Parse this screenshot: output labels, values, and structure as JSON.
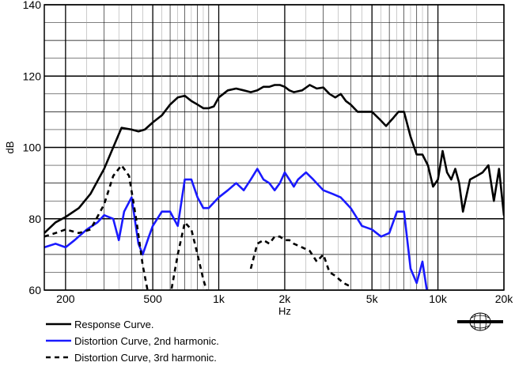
{
  "chart_data": {
    "type": "line",
    "xlabel": "Hz",
    "ylabel": "dB",
    "xscale": "log",
    "xlim": [
      160,
      20000
    ],
    "ylim": [
      60,
      140
    ],
    "grid": true,
    "legend_position": "bottom-left",
    "x_tick_values": [
      200,
      500,
      1000,
      2000,
      5000,
      10000,
      20000
    ],
    "x_tick_labels": [
      "200",
      "500",
      "1k",
      "2k",
      "5k",
      "10k",
      "20k"
    ],
    "y_tick_values": [
      60,
      80,
      100,
      120,
      140
    ],
    "y_tick_labels": [
      "60",
      "80",
      "100",
      "120",
      "140"
    ],
    "series": [
      {
        "name": "Response Curve.",
        "color": "#000000",
        "style": "solid",
        "points": [
          [
            160,
            76
          ],
          [
            180,
            79
          ],
          [
            200,
            80.5
          ],
          [
            230,
            83
          ],
          [
            260,
            87
          ],
          [
            300,
            94
          ],
          [
            330,
            100
          ],
          [
            360,
            105.5
          ],
          [
            400,
            105
          ],
          [
            430,
            104.5
          ],
          [
            460,
            105
          ],
          [
            500,
            107
          ],
          [
            550,
            109
          ],
          [
            600,
            112
          ],
          [
            650,
            114
          ],
          [
            700,
            114.5
          ],
          [
            750,
            113
          ],
          [
            800,
            112
          ],
          [
            850,
            111
          ],
          [
            900,
            111
          ],
          [
            950,
            111.5
          ],
          [
            1000,
            114
          ],
          [
            1100,
            116
          ],
          [
            1200,
            116.5
          ],
          [
            1300,
            116
          ],
          [
            1400,
            115.5
          ],
          [
            1500,
            116
          ],
          [
            1600,
            117
          ],
          [
            1700,
            117
          ],
          [
            1800,
            117.5
          ],
          [
            1900,
            117.5
          ],
          [
            2000,
            117
          ],
          [
            2100,
            116
          ],
          [
            2200,
            115.5
          ],
          [
            2400,
            116
          ],
          [
            2600,
            117.5
          ],
          [
            2800,
            116.5
          ],
          [
            3000,
            116.8
          ],
          [
            3200,
            115
          ],
          [
            3400,
            114
          ],
          [
            3600,
            115
          ],
          [
            3800,
            113
          ],
          [
            4000,
            112
          ],
          [
            4300,
            110
          ],
          [
            4600,
            110
          ],
          [
            5000,
            110
          ],
          [
            5400,
            108
          ],
          [
            5800,
            106
          ],
          [
            6200,
            108
          ],
          [
            6600,
            110
          ],
          [
            7000,
            110
          ],
          [
            7500,
            103
          ],
          [
            8000,
            98
          ],
          [
            8500,
            98
          ],
          [
            9000,
            95
          ],
          [
            9500,
            89
          ],
          [
            10000,
            91
          ],
          [
            10500,
            99
          ],
          [
            11000,
            93
          ],
          [
            11500,
            91
          ],
          [
            12000,
            94
          ],
          [
            12500,
            90
          ],
          [
            13000,
            82
          ],
          [
            14000,
            91
          ],
          [
            15000,
            92
          ],
          [
            16000,
            93
          ],
          [
            17000,
            95
          ],
          [
            18000,
            85
          ],
          [
            19000,
            94
          ],
          [
            20000,
            81
          ],
          [
            21000,
            94
          ]
        ]
      },
      {
        "name": "Distortion Curve, 2nd harmonic.",
        "color": "#1a1aff",
        "style": "solid",
        "points": [
          [
            160,
            72
          ],
          [
            180,
            73
          ],
          [
            200,
            72
          ],
          [
            220,
            74
          ],
          [
            250,
            77
          ],
          [
            280,
            79
          ],
          [
            300,
            81
          ],
          [
            330,
            80
          ],
          [
            350,
            74
          ],
          [
            370,
            82
          ],
          [
            400,
            86
          ],
          [
            430,
            73
          ],
          [
            450,
            70
          ],
          [
            480,
            75
          ],
          [
            500,
            78
          ],
          [
            550,
            82
          ],
          [
            600,
            82
          ],
          [
            650,
            78
          ],
          [
            700,
            91
          ],
          [
            750,
            91
          ],
          [
            800,
            86
          ],
          [
            850,
            83
          ],
          [
            900,
            83
          ],
          [
            1000,
            86
          ],
          [
            1100,
            88
          ],
          [
            1200,
            90
          ],
          [
            1300,
            88
          ],
          [
            1400,
            91
          ],
          [
            1500,
            94
          ],
          [
            1600,
            91
          ],
          [
            1700,
            90
          ],
          [
            1800,
            88
          ],
          [
            1900,
            90
          ],
          [
            2000,
            93
          ],
          [
            2100,
            91
          ],
          [
            2200,
            89
          ],
          [
            2300,
            91
          ],
          [
            2500,
            93
          ],
          [
            2700,
            91
          ],
          [
            3000,
            88
          ],
          [
            3300,
            87
          ],
          [
            3600,
            86
          ],
          [
            4000,
            83
          ],
          [
            4500,
            78
          ],
          [
            5000,
            77
          ],
          [
            5500,
            75
          ],
          [
            6000,
            76
          ],
          [
            6500,
            82
          ],
          [
            7000,
            82
          ],
          [
            7500,
            66
          ],
          [
            8000,
            62
          ],
          [
            8500,
            68
          ],
          [
            9000,
            58
          ]
        ]
      },
      {
        "name": "Distortion Curve, 3rd harmonic.",
        "color": "#000000",
        "style": "dashed",
        "points": [
          [
            160,
            75
          ],
          [
            180,
            76
          ],
          [
            200,
            77
          ],
          [
            230,
            76
          ],
          [
            260,
            77
          ],
          [
            300,
            84
          ],
          [
            330,
            92
          ],
          [
            360,
            95
          ],
          [
            390,
            92
          ],
          [
            420,
            80
          ],
          [
            450,
            67
          ],
          [
            480,
            58
          ]
        ]
      },
      {
        "name": "Distortion Curve, 3rd harmonic.",
        "color": "#000000",
        "style": "dashed",
        "points": [
          [
            600,
            58
          ],
          [
            650,
            70
          ],
          [
            700,
            79
          ],
          [
            750,
            77
          ],
          [
            800,
            70
          ],
          [
            850,
            63
          ],
          [
            900,
            58
          ]
        ]
      },
      {
        "name": "Distortion Curve, 3rd harmonic.",
        "color": "#000000",
        "style": "dashed",
        "points": [
          [
            1400,
            66
          ],
          [
            1500,
            73
          ],
          [
            1600,
            74
          ],
          [
            1700,
            73
          ],
          [
            1800,
            75
          ],
          [
            1900,
            75
          ],
          [
            2000,
            74
          ],
          [
            2100,
            74
          ],
          [
            2200,
            73
          ],
          [
            2400,
            72
          ],
          [
            2600,
            71
          ],
          [
            2800,
            68
          ],
          [
            3000,
            70
          ],
          [
            3200,
            65
          ],
          [
            3400,
            64
          ],
          [
            3700,
            62
          ],
          [
            4000,
            61
          ]
        ]
      }
    ]
  },
  "logo": {
    "name": "brand-logo"
  }
}
